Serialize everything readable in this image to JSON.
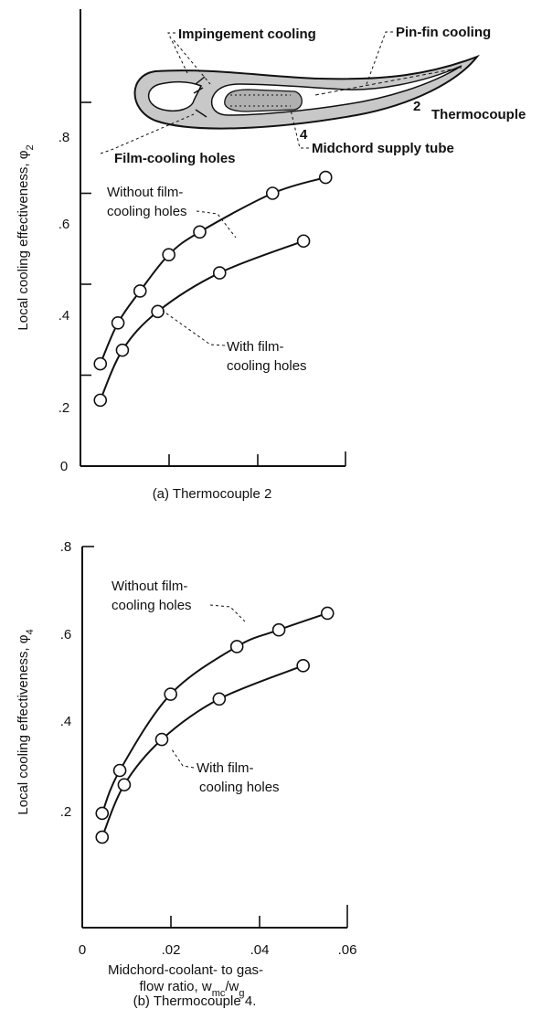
{
  "chart_data": [
    {
      "type": "line",
      "caption": "(a) Thermocouple 2",
      "ylabel": "Local cooling effectiveness, φ",
      "ylabel_sub": "2",
      "xlim": [
        0,
        0.06
      ],
      "ylim": [
        0,
        0.8
      ],
      "yticks": [
        "0",
        ".2",
        ".4",
        ".6",
        ".8"
      ],
      "series": [
        {
          "name": "Without film-cooling holes",
          "label_lines": [
            "Without film-",
            "cooling holes"
          ],
          "x": [
            0.0045,
            0.0085,
            0.0135,
            0.02,
            0.027,
            0.0435,
            0.0555
          ],
          "y": [
            0.225,
            0.315,
            0.385,
            0.465,
            0.515,
            0.6,
            0.635
          ]
        },
        {
          "name": "With film-cooling holes",
          "label_lines": [
            "With film-",
            "cooling holes"
          ],
          "x": [
            0.0045,
            0.0095,
            0.0175,
            0.0315,
            0.0505
          ],
          "y": [
            0.145,
            0.255,
            0.34,
            0.425,
            0.495
          ]
        }
      ],
      "inset": {
        "labels": {
          "impingement": "Impingement cooling",
          "pinfin": "Pin-fin cooling",
          "film_holes": "Film-cooling holes",
          "midchord": "Midchord supply tube",
          "tc_num": "2",
          "tc_label": "Thermocouple",
          "tc4": "4"
        }
      }
    },
    {
      "type": "line",
      "caption": "(b) Thermocouple 4.",
      "ylabel": "Local cooling effectiveness, φ",
      "ylabel_sub": "4",
      "xlabel_line1": "Midchord-coolant- to gas-",
      "xlabel_line2_prefix": "flow ratio, w",
      "xlabel_sub1": "mc",
      "xlabel_mid": "/w",
      "xlabel_sub2": "g",
      "xlim": [
        0,
        0.06
      ],
      "ylim": [
        0,
        0.8
      ],
      "xticks": [
        "0",
        ".02",
        ".04",
        ".06"
      ],
      "yticks": [
        ".2",
        ".4",
        ".6",
        ".8"
      ],
      "series": [
        {
          "name": "Without film-cooling holes",
          "label_lines": [
            "Without film-",
            "cooling holes"
          ],
          "x": [
            0.0045,
            0.0085,
            0.02,
            0.035,
            0.0445,
            0.0555
          ],
          "y": [
            0.24,
            0.33,
            0.49,
            0.59,
            0.625,
            0.66
          ]
        },
        {
          "name": "With film-cooling holes",
          "label_lines": [
            "With film-",
            "cooling holes"
          ],
          "x": [
            0.0045,
            0.0095,
            0.018,
            0.031,
            0.05
          ],
          "y": [
            0.19,
            0.3,
            0.395,
            0.48,
            0.55
          ]
        }
      ]
    }
  ]
}
